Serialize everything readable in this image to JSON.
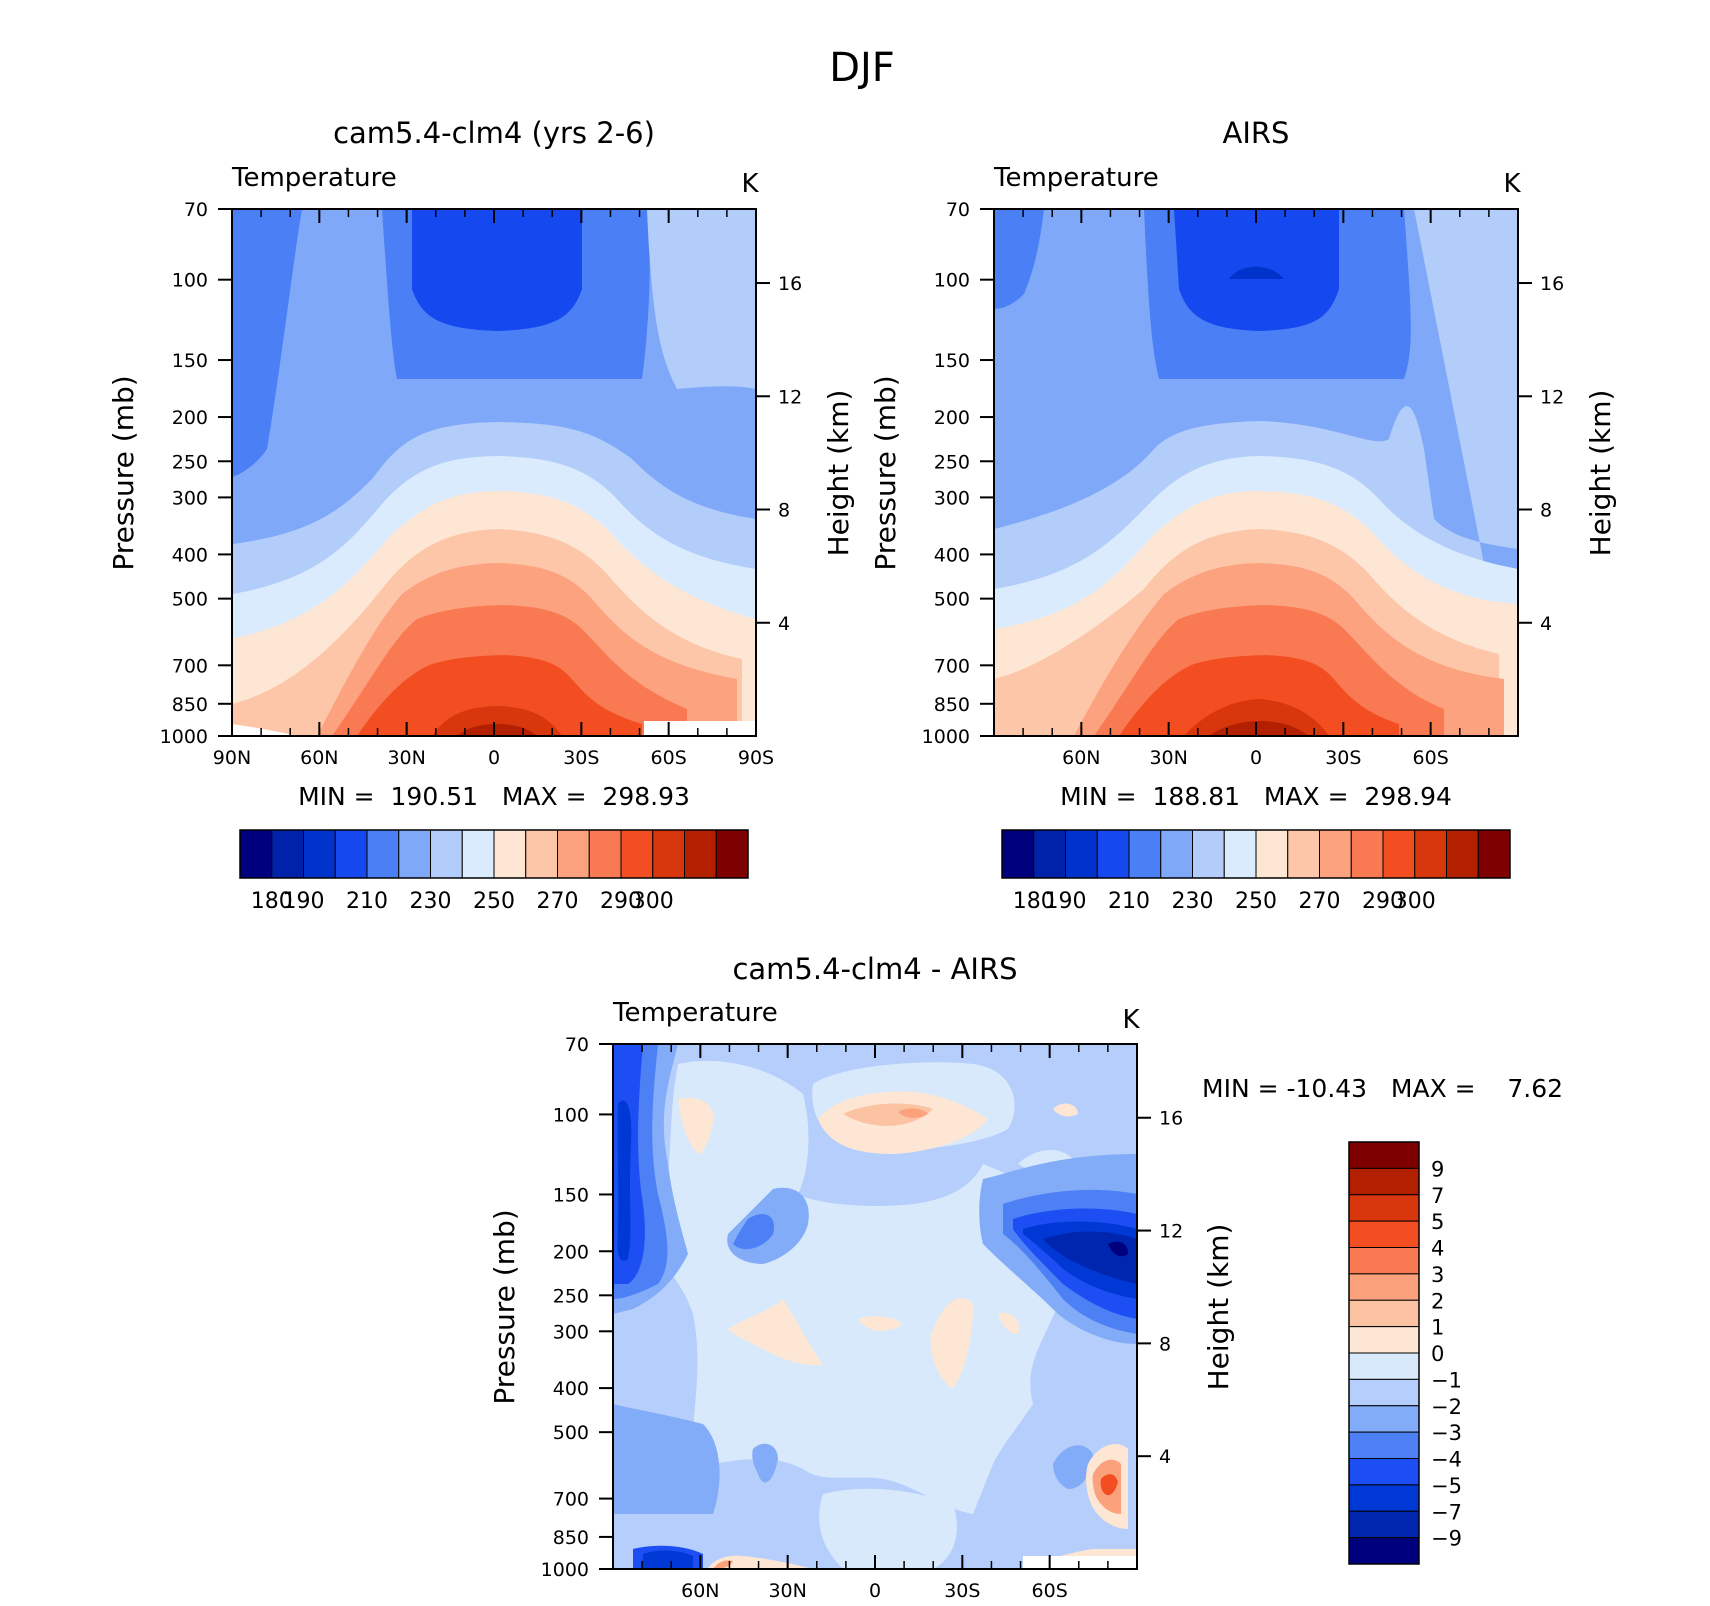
{
  "figure": {
    "title": "DJF"
  },
  "chart_data": [
    {
      "type": "heatmap",
      "title": "cam5.4-clm4 (yrs 2-6)",
      "subtitle": "Temperature",
      "units": "K",
      "ylabel": "Pressure (mb)",
      "y2label": "Height (km)",
      "x_ticks": [
        "90N",
        "60N",
        "30N",
        "0",
        "30S",
        "60S",
        "90S"
      ],
      "x_range": [
        90,
        -90
      ],
      "y_ticks": [
        70,
        100,
        150,
        200,
        250,
        300,
        400,
        500,
        700,
        850,
        1000
      ],
      "y2_ticks": [
        4,
        8,
        12,
        16
      ],
      "stats_text": "MIN =  190.51   MAX =  298.93",
      "min": 190.51,
      "max": 298.93,
      "levels": [
        180,
        190,
        200,
        210,
        220,
        230,
        240,
        250,
        260,
        270,
        280,
        290,
        300
      ],
      "colorbar_labels": [
        "180",
        "190",
        "210",
        "230",
        "250",
        "270",
        "290",
        "300"
      ]
    },
    {
      "type": "heatmap",
      "title": "AIRS",
      "subtitle": "Temperature",
      "units": "K",
      "ylabel": "Pressure (mb)",
      "y2label": "Height (km)",
      "x_ticks": [
        "60N",
        "30N",
        "0",
        "30S",
        "60S"
      ],
      "x_range": [
        90,
        -90
      ],
      "y_ticks": [
        70,
        100,
        150,
        200,
        250,
        300,
        400,
        500,
        700,
        850,
        1000
      ],
      "y2_ticks": [
        4,
        8,
        12,
        16
      ],
      "stats_text": "MIN =  188.81   MAX =  298.94",
      "min": 188.81,
      "max": 298.94,
      "levels": [
        180,
        190,
        200,
        210,
        220,
        230,
        240,
        250,
        260,
        270,
        280,
        290,
        300
      ],
      "colorbar_labels": [
        "180",
        "190",
        "210",
        "230",
        "250",
        "270",
        "290",
        "300"
      ]
    },
    {
      "type": "heatmap",
      "title": "cam5.4-clm4 - AIRS",
      "subtitle": "Temperature",
      "units": "K",
      "ylabel": "Pressure (mb)",
      "y2label": "Height (km)",
      "x_ticks": [
        "60N",
        "30N",
        "0",
        "30S",
        "60S"
      ],
      "x_range": [
        90,
        -90
      ],
      "y_ticks": [
        70,
        100,
        150,
        200,
        250,
        300,
        400,
        500,
        700,
        850,
        1000
      ],
      "y2_ticks": [
        4,
        8,
        12,
        16
      ],
      "stats_text": "MIN = -10.43   MAX =    7.62",
      "min": -10.43,
      "max": 7.62,
      "levels": [
        -9,
        -7,
        -5,
        -4,
        -3,
        -2,
        -1,
        0,
        1,
        2,
        3,
        4,
        5,
        7,
        9
      ],
      "colorbar_labels": [
        "9",
        "7",
        "5",
        "4",
        "3",
        "2",
        "1",
        "0",
        "-1",
        "-2",
        "-3",
        "-4",
        "-5",
        "-7",
        "-9"
      ]
    }
  ],
  "colors": {
    "temperature": [
      "#00007f",
      "#0022aa",
      "#0033cc",
      "#1648f0",
      "#4a7ff5",
      "#7fa8f8",
      "#b3cdfb",
      "#d9ebfc",
      "#fde6d4",
      "#fdc6a8",
      "#fca27e",
      "#f97a52",
      "#f24e21",
      "#d8360c",
      "#b32000",
      "#7f0000"
    ],
    "difference": [
      "#00007f",
      "#0026b0",
      "#0038d6",
      "#1c4ef3",
      "#4d80f5",
      "#82abf8",
      "#b6cefb",
      "#d9e9fc",
      "#fde6d4",
      "#fcc3a3",
      "#fba27c",
      "#f97a52",
      "#f24e21",
      "#d8360c",
      "#b32000",
      "#7f0000"
    ]
  }
}
